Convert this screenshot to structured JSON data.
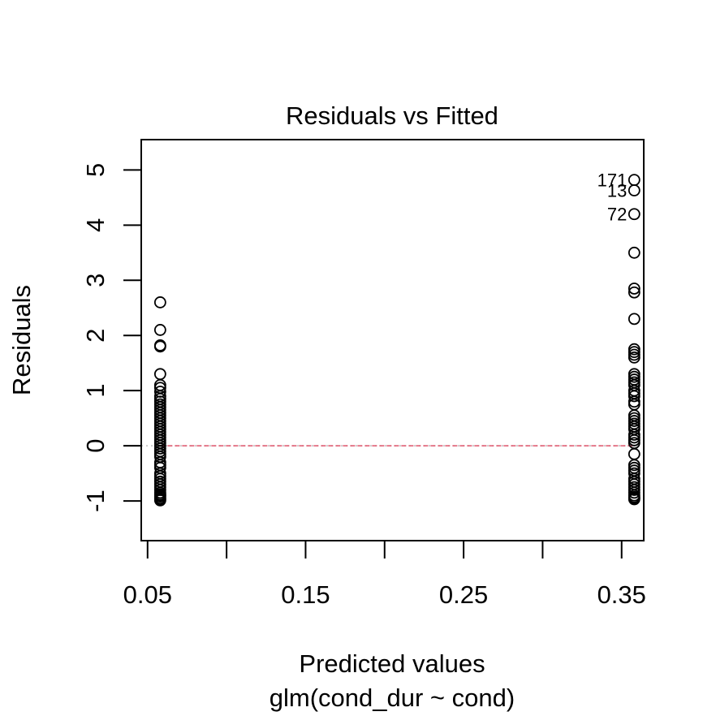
{
  "chart_data": {
    "type": "scatter",
    "title": "Residuals vs Fitted",
    "xlabel": "Predicted values",
    "sublabel": "glm(cond_dur ~ cond)",
    "ylabel": "Residuals",
    "xlim": [
      0.046,
      0.364
    ],
    "ylim": [
      -1.72,
      5.55
    ],
    "x_ticks": [
      0.05,
      0.1,
      0.15,
      0.2,
      0.25,
      0.3,
      0.35
    ],
    "x_tick_labels": [
      "0.05",
      "",
      "0.15",
      "",
      "0.25",
      "",
      "0.35"
    ],
    "y_ticks": [
      -1,
      0,
      1,
      2,
      3,
      4,
      5
    ],
    "y_tick_labels": [
      "-1",
      "0",
      "1",
      "2",
      "3",
      "4",
      "5"
    ],
    "reference_line": {
      "y": 0,
      "color": "#bebebe"
    },
    "smooth_line": {
      "y": 0,
      "color": "#df536b"
    },
    "point_color": "#000000",
    "series": [
      {
        "x": 0.058,
        "y": [
          2.6,
          2.1,
          1.82,
          1.8,
          1.3,
          1.1,
          1.05,
          0.98,
          0.9,
          0.85,
          0.8,
          0.75,
          0.7,
          0.65,
          0.6,
          0.55,
          0.5,
          0.45,
          0.4,
          0.35,
          0.3,
          0.25,
          0.2,
          0.15,
          0.1,
          0.05,
          0.0,
          -0.05,
          -0.1,
          -0.15,
          -0.2,
          -0.3,
          -0.35,
          -0.4,
          -0.5,
          -0.55,
          -0.6,
          -0.65,
          -0.7,
          -0.75,
          -0.8,
          -0.85,
          -0.88,
          -0.9,
          -0.92,
          -0.95,
          -0.97,
          -0.99
        ]
      },
      {
        "x": 0.358,
        "y": [
          4.82,
          4.63,
          4.2,
          3.5,
          2.85,
          2.78,
          2.3,
          1.75,
          1.7,
          1.65,
          1.6,
          1.3,
          1.25,
          1.2,
          1.15,
          1.1,
          1.0,
          0.95,
          0.9,
          0.8,
          0.75,
          0.55,
          0.5,
          0.45,
          0.4,
          0.35,
          0.3,
          0.2,
          0.15,
          0.1,
          0.05,
          -0.15,
          -0.35,
          -0.4,
          -0.45,
          -0.5,
          -0.6,
          -0.65,
          -0.7,
          -0.75,
          -0.8,
          -0.85,
          -0.9,
          -0.93,
          -0.95,
          -0.97
        ]
      }
    ],
    "annotations": [
      {
        "text": "171",
        "x": 0.358,
        "y": 4.82
      },
      {
        "text": "13",
        "x": 0.358,
        "y": 4.63
      },
      {
        "text": "72",
        "x": 0.358,
        "y": 4.2
      }
    ]
  }
}
